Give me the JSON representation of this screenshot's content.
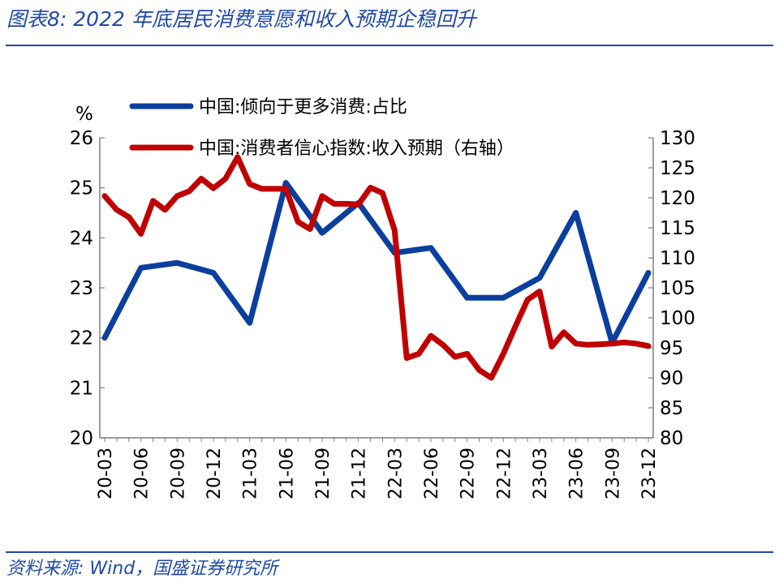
{
  "title": "图表8:  2022 年底居民消费意愿和收入预期企稳回升",
  "source": "资料来源:  Wind，国盛证券研究所",
  "colors": {
    "accent": "#1f4aa8",
    "series1": "#0b3f9e",
    "series2": "#c00000"
  },
  "chart_data": {
    "type": "line",
    "left_unit": "%",
    "y_left": {
      "lim": [
        20,
        26
      ],
      "ticks": [
        "20",
        "21",
        "22",
        "23",
        "24",
        "25",
        "26"
      ]
    },
    "y_right": {
      "lim": [
        80,
        130
      ],
      "ticks": [
        "80",
        "85",
        "90",
        "95",
        "100",
        "105",
        "110",
        "115",
        "120",
        "125",
        "130"
      ]
    },
    "x_tick_labels": [
      "20-03",
      "20-06",
      "20-09",
      "20-12",
      "21-03",
      "21-06",
      "21-09",
      "21-12",
      "22-03",
      "22-06",
      "22-09",
      "22-12",
      "23-03",
      "23-06",
      "23-09",
      "23-12"
    ],
    "grid": false,
    "legend_position": "top",
    "series": [
      {
        "name": "中国:倾向于更多消费:占比",
        "axis": "left",
        "x": [
          "20-03",
          "20-06",
          "20-09",
          "20-12",
          "21-03",
          "21-06",
          "21-09",
          "21-12",
          "22-03",
          "22-06",
          "22-09",
          "22-12",
          "23-03",
          "23-06",
          "23-09",
          "23-12"
        ],
        "values": [
          22.0,
          23.4,
          23.5,
          23.3,
          22.3,
          25.1,
          24.1,
          24.7,
          23.7,
          23.8,
          22.8,
          22.8,
          23.2,
          24.5,
          21.9,
          23.3
        ]
      },
      {
        "name": "中国:消费者信心指数:收入预期（右轴）",
        "axis": "right",
        "x": [
          "20-03",
          "20-04",
          "20-05",
          "20-06",
          "20-07",
          "20-08",
          "20-09",
          "20-10",
          "20-11",
          "20-12",
          "21-01",
          "21-02",
          "21-03",
          "21-04",
          "21-05",
          "21-06",
          "21-07",
          "21-08",
          "21-09",
          "21-10",
          "21-11",
          "21-12",
          "22-01",
          "22-02",
          "22-03",
          "22-04",
          "22-05",
          "22-06",
          "22-07",
          "22-08",
          "22-09",
          "22-10",
          "22-11",
          "22-12",
          "23-01",
          "23-02",
          "23-03",
          "23-04",
          "23-05",
          "23-06",
          "23-07",
          "23-08",
          "23-09",
          "23-10",
          "23-11",
          "23-12"
        ],
        "values": [
          120.3,
          118.0,
          116.8,
          114.0,
          119.5,
          118.0,
          120.3,
          121.1,
          123.2,
          121.6,
          123.2,
          126.8,
          122.3,
          121.5,
          121.5,
          121.5,
          116.0,
          114.8,
          120.3,
          119.0,
          119.0,
          118.9,
          121.7,
          120.8,
          114.6,
          93.3,
          94.0,
          97.0,
          95.5,
          93.5,
          94.0,
          91.3,
          90.0,
          94.0,
          98.6,
          103.0,
          104.4,
          95.2,
          97.6,
          95.7,
          95.5,
          95.6,
          95.7,
          95.9,
          95.7,
          95.3
        ]
      }
    ]
  }
}
